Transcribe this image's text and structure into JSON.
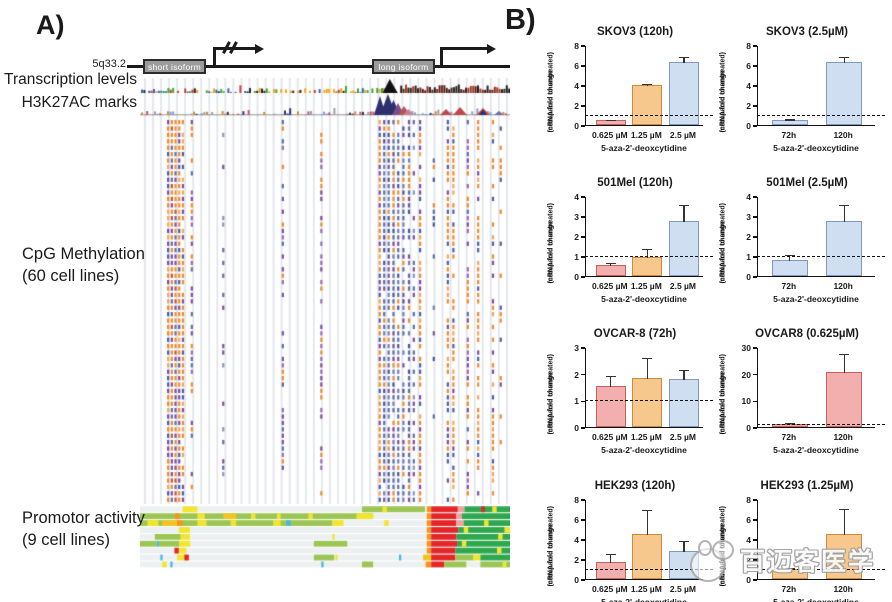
{
  "panelA": {
    "label": "A)",
    "locus": "5q33.2",
    "isoforms": [
      {
        "label": "short isoform"
      },
      {
        "label": "long isoform"
      }
    ],
    "tracks": [
      {
        "label": "Transcription levels"
      },
      {
        "label": "H3K27AC marks"
      }
    ],
    "methylation": {
      "label_line1": "CpG Methylation",
      "label_line2": "(60 cell lines)",
      "rows": 60,
      "gridline_count": 46,
      "sites": [
        {
          "f": 0.076,
          "t": "orange",
          "d": 1
        },
        {
          "f": 0.086,
          "t": "mixed",
          "d": 1
        },
        {
          "f": 0.096,
          "t": "mixed",
          "d": 1
        },
        {
          "f": 0.106,
          "t": "orange",
          "d": 1
        },
        {
          "f": 0.116,
          "t": "orange",
          "d": 0.85
        },
        {
          "f": 0.14,
          "t": "purple",
          "d": 0.5
        },
        {
          "f": 0.225,
          "t": "bluep",
          "d": 0.35
        },
        {
          "f": 0.386,
          "t": "purple",
          "d": 0.45
        },
        {
          "f": 0.49,
          "t": "purplo",
          "d": 0.55
        },
        {
          "f": 0.648,
          "t": "orange",
          "d": 1
        },
        {
          "f": 0.66,
          "t": "blue",
          "d": 0.95
        },
        {
          "f": 0.672,
          "t": "blue",
          "d": 0.95
        },
        {
          "f": 0.685,
          "t": "blue",
          "d": 0.95
        },
        {
          "f": 0.698,
          "t": "blue",
          "d": 0.9
        },
        {
          "f": 0.712,
          "t": "blue",
          "d": 0.9
        },
        {
          "f": 0.727,
          "t": "blue",
          "d": 0.85
        },
        {
          "f": 0.74,
          "t": "bluep",
          "d": 0.6
        },
        {
          "f": 0.757,
          "t": "orange",
          "d": 0.9
        },
        {
          "f": 0.794,
          "t": "blue",
          "d": 0.3
        },
        {
          "f": 0.832,
          "t": "orange",
          "d": 0.85
        },
        {
          "f": 0.847,
          "t": "orange",
          "d": 0.85
        },
        {
          "f": 0.886,
          "t": "purple",
          "d": 0.8
        },
        {
          "f": 0.914,
          "t": "orange",
          "d": 0.8
        },
        {
          "f": 0.954,
          "t": "orange",
          "d": 0.55
        },
        {
          "f": 0.975,
          "t": "orange",
          "d": 0.3
        }
      ],
      "transcription_big_peak_f": 0.675,
      "h3k27ac_cluster_f": [
        0.655,
        0.76
      ],
      "h3k27ac_red_peaks_f": [
        0.84,
        0.92
      ]
    },
    "promoter": {
      "label_line1": "Promotor activity",
      "label_line2": "(9 cell lines)",
      "row_count": 9,
      "rows": [
        [
          [
            0.115,
            0.04,
            "y"
          ],
          [
            0.6,
            0.17,
            "g"
          ],
          [
            0.655,
            0.012,
            "y"
          ],
          [
            0.775,
            0.012,
            "o"
          ],
          [
            0.787,
            0.072,
            "r"
          ],
          [
            0.859,
            0.018,
            "p"
          ],
          [
            0.877,
            0.123,
            "G"
          ],
          [
            0.922,
            0.01,
            "r"
          ],
          [
            0.952,
            0.012,
            "y"
          ]
        ],
        [
          [
            0,
            0.63,
            "g"
          ],
          [
            0.095,
            0.012,
            "o"
          ],
          [
            0.155,
            0.02,
            "y"
          ],
          [
            0.225,
            0.035,
            "d"
          ],
          [
            0.3,
            0.012,
            "y"
          ],
          [
            0.37,
            0.01,
            "y"
          ],
          [
            0.455,
            0.012,
            "y"
          ],
          [
            0.585,
            0.045,
            "y"
          ],
          [
            0.775,
            0.012,
            "o"
          ],
          [
            0.787,
            0.068,
            "r"
          ],
          [
            0.855,
            0.015,
            "p"
          ],
          [
            0.87,
            0.13,
            "G"
          ]
        ],
        [
          [
            0,
            0.52,
            "g"
          ],
          [
            0.02,
            0.03,
            "y"
          ],
          [
            0.06,
            0.04,
            "d"
          ],
          [
            0.1,
            0.015,
            "o"
          ],
          [
            0.155,
            0.025,
            "y"
          ],
          [
            0.245,
            0.015,
            "y"
          ],
          [
            0.36,
            0.02,
            "y"
          ],
          [
            0.395,
            0.012,
            "b"
          ],
          [
            0.52,
            0.03,
            "y"
          ],
          [
            0.66,
            0.012,
            "y"
          ],
          [
            0.775,
            0.012,
            "o"
          ],
          [
            0.787,
            0.068,
            "r"
          ],
          [
            0.855,
            0.02,
            "p"
          ],
          [
            0.875,
            0.125,
            "G"
          ],
          [
            0.93,
            0.012,
            "y"
          ]
        ],
        [
          [
            0.105,
            0.03,
            "y"
          ],
          [
            0.775,
            0.012,
            "o"
          ],
          [
            0.787,
            0.073,
            "r"
          ],
          [
            0.86,
            0.14,
            "G"
          ],
          [
            0.875,
            0.012,
            "y"
          ],
          [
            0.985,
            0.015,
            "y"
          ]
        ],
        [
          [
            0.04,
            0.07,
            "g"
          ],
          [
            0.11,
            0.025,
            "y"
          ],
          [
            0.52,
            0.006,
            "y"
          ],
          [
            0.775,
            0.012,
            "o"
          ],
          [
            0.787,
            0.068,
            "r"
          ],
          [
            0.855,
            0.145,
            "G"
          ],
          [
            0.968,
            0.012,
            "y"
          ]
        ],
        [
          [
            0,
            0.045,
            "g"
          ],
          [
            0.045,
            0.006,
            "b"
          ],
          [
            0.051,
            0.055,
            "g"
          ],
          [
            0.106,
            0.03,
            "y"
          ],
          [
            0.47,
            0.09,
            "g"
          ],
          [
            0.775,
            0.012,
            "o"
          ],
          [
            0.787,
            0.07,
            "r"
          ],
          [
            0.857,
            0.143,
            "G"
          ],
          [
            0.87,
            0.012,
            "y"
          ]
        ],
        [
          [
            0.093,
            0.012,
            "r"
          ],
          [
            0.105,
            0.02,
            "y"
          ],
          [
            0.775,
            0.012,
            "o"
          ],
          [
            0.787,
            0.065,
            "r"
          ],
          [
            0.852,
            0.148,
            "G"
          ],
          [
            0.965,
            0.012,
            "y"
          ]
        ],
        [
          [
            0.055,
            0.006,
            "b"
          ],
          [
            0.1,
            0.025,
            "y"
          ],
          [
            0.12,
            0.012,
            "r"
          ],
          [
            0.47,
            0.055,
            "g"
          ],
          [
            0.528,
            0.006,
            "y"
          ],
          [
            0.7,
            0.006,
            "b"
          ],
          [
            0.765,
            0.022,
            "d"
          ],
          [
            0.787,
            0.065,
            "r"
          ],
          [
            0.852,
            0.05,
            "g"
          ],
          [
            0.9,
            0.02,
            "y"
          ],
          [
            0.92,
            0.08,
            "G"
          ]
        ],
        [
          [
            0.06,
            0.012,
            "y"
          ],
          [
            0.082,
            0.006,
            "b"
          ],
          [
            0.49,
            0.006,
            "b"
          ],
          [
            0.6,
            0.03,
            "g"
          ],
          [
            0.772,
            0.015,
            "o"
          ],
          [
            0.787,
            0.035,
            "r"
          ],
          [
            0.822,
            0.06,
            "g"
          ],
          [
            0.92,
            0.08,
            "g"
          ],
          [
            0.98,
            0.01,
            "y"
          ]
        ]
      ]
    }
  },
  "panelB": {
    "label": "B)",
    "ylabel_line1": "mRNA fold change",
    "ylabel_line2": "(compared to untreated)",
    "xlabel": "5-aza-2'-deoxcytidine"
  },
  "chart_data": [
    {
      "type": "bar",
      "title": "SKOV3 (120h)",
      "categories": [
        "0.625 µM",
        "1.25 µM",
        "2.5 µM"
      ],
      "values": [
        0.5,
        4.05,
        6.3
      ],
      "errors": [
        0.1,
        0.1,
        0.55
      ],
      "bar_colors": [
        "pink",
        "orange",
        "blue"
      ],
      "ylim": [
        0,
        8
      ],
      "yticks": [
        0,
        2,
        4,
        6,
        8
      ],
      "baseline": 1,
      "ylabel": "mRNA fold change (compared to untreated)",
      "xlabel": "5-aza-2'-deoxcytidine"
    },
    {
      "type": "bar",
      "title": "SKOV3 (2.5µM)",
      "categories": [
        "72h",
        "120h"
      ],
      "values": [
        0.5,
        6.3
      ],
      "errors": [
        0.12,
        0.6
      ],
      "bar_colors": [
        "blue",
        "blue"
      ],
      "ylim": [
        0,
        8
      ],
      "yticks": [
        0,
        2,
        4,
        6,
        8
      ],
      "baseline": 1,
      "ylabel": "mRNA fold change (compared to untreated)",
      "xlabel": "5-aza-2'-deoxcytidine"
    },
    {
      "type": "bar",
      "title": "501Mel (120h)",
      "categories": [
        "0.625 µM",
        "1.25 µM",
        "2.5 µM"
      ],
      "values": [
        0.55,
        0.97,
        2.75
      ],
      "errors": [
        0.15,
        0.4,
        0.85
      ],
      "bar_colors": [
        "pink",
        "orange",
        "blue"
      ],
      "ylim": [
        0,
        4
      ],
      "yticks": [
        0,
        1,
        2,
        3,
        4
      ],
      "baseline": 1,
      "ylabel": "mRNA fold change (compared to untreated)",
      "xlabel": "5-aza-2'-deoxcytidine"
    },
    {
      "type": "bar",
      "title": "501Mel (2.5µM)",
      "categories": [
        "72h",
        "120h"
      ],
      "values": [
        0.78,
        2.75
      ],
      "errors": [
        0.32,
        0.85
      ],
      "bar_colors": [
        "blue",
        "blue"
      ],
      "ylim": [
        0,
        4
      ],
      "yticks": [
        0,
        1,
        2,
        3,
        4
      ],
      "baseline": 1,
      "ylabel": "mRNA fold change (compared to untreated)",
      "xlabel": "5-aza-2'-deoxcytidine"
    },
    {
      "type": "bar",
      "title": "OVCAR-8 (72h)",
      "categories": [
        "0.625 µM",
        "1.25 µM",
        "2.5 µM"
      ],
      "values": [
        1.55,
        1.85,
        1.8
      ],
      "errors": [
        0.4,
        0.75,
        0.35
      ],
      "bar_colors": [
        "pink",
        "orange",
        "blue"
      ],
      "ylim": [
        0,
        3
      ],
      "yticks": [
        0,
        1,
        2,
        3
      ],
      "baseline": 1,
      "ylabel": "mRNA fold change (compared to untreated)",
      "xlabel": "5-aza-2'-deoxcytidine"
    },
    {
      "type": "bar",
      "title": "OVCAR8 (0.625µM)",
      "categories": [
        "72h",
        "120h"
      ],
      "values": [
        1.3,
        20.5
      ],
      "errors": [
        0.4,
        7
      ],
      "bar_colors": [
        "pink",
        "pink"
      ],
      "ylim": [
        0,
        30
      ],
      "yticks": [
        0,
        10,
        20,
        30
      ],
      "baseline": 1,
      "ylabel": "mRNA fold change (compared to untreated)",
      "xlabel": "5-aza-2'-deoxcytidine"
    },
    {
      "type": "bar",
      "title": "HEK293 (120h)",
      "categories": [
        "0.625 µM",
        "1.25 µM",
        "2.5 µM"
      ],
      "values": [
        1.7,
        4.5,
        2.8
      ],
      "errors": [
        0.85,
        2.5,
        1.05
      ],
      "bar_colors": [
        "pink",
        "orange",
        "blue"
      ],
      "ylim": [
        0,
        8
      ],
      "yticks": [
        0,
        2,
        4,
        6,
        8
      ],
      "baseline": 1,
      "ylabel": "mRNA fold change (compared to untreated)",
      "xlabel": "5-aza-2'-deoxcytidine"
    },
    {
      "type": "bar",
      "title": "HEK293 (1.25µM)",
      "categories": [
        "72h",
        "120h"
      ],
      "values": [
        1.0,
        4.5
      ],
      "errors": [
        0.2,
        2.55
      ],
      "bar_colors": [
        "orange",
        "orange"
      ],
      "ylim": [
        0,
        8
      ],
      "yticks": [
        0,
        2,
        4,
        6,
        8
      ],
      "baseline": 1,
      "ylabel": "mRNA fold change (compared to untreated)",
      "xlabel": "5-aza-2'-deoxcytidine"
    }
  ],
  "watermark": {
    "text": "百迈客医学"
  },
  "colors": {
    "bar_pink_fill": "#F3AEAE",
    "bar_pink_stroke": "#C75F5D",
    "bar_orange_fill": "#F7C88E",
    "bar_orange_stroke": "#CE8B33",
    "bar_blue_fill": "#CFDEF0",
    "bar_blue_stroke": "#8199BE",
    "axis": "#111111",
    "meth_orange": "#F08A2C",
    "meth_blue": "#5C6FA8",
    "meth_purple": "#7C4E9E",
    "prom_lightgreen": "#9CC653",
    "prom_darkgreen": "#2EA84E",
    "prom_yellow": "#F2E52E",
    "prom_gold": "#EFC61F",
    "prom_orange": "#F7941D",
    "prom_red": "#E52528",
    "prom_pink": "#F2A0A0",
    "prom_blue": "#45B5E8",
    "prom_base": "#ECF0F1"
  }
}
